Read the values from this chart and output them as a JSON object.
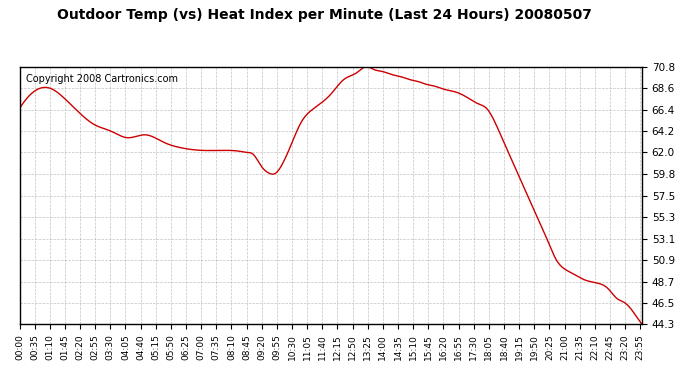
{
  "title": "Outdoor Temp (vs) Heat Index per Minute (Last 24 Hours) 20080507",
  "copyright_text": "Copyright 2008 Cartronics.com",
  "line_color": "#cc0000",
  "background_color": "#ffffff",
  "plot_bg_color": "#ffffff",
  "grid_color": "#aaaaaa",
  "y_ticks": [
    44.3,
    46.5,
    48.7,
    50.9,
    53.1,
    55.3,
    57.5,
    59.8,
    62.0,
    64.2,
    66.4,
    68.6,
    70.8
  ],
  "y_min": 44.3,
  "y_max": 70.8,
  "x_tick_labels": [
    "00:00",
    "00:35",
    "01:10",
    "01:45",
    "02:20",
    "02:55",
    "03:30",
    "04:05",
    "04:40",
    "05:15",
    "05:50",
    "06:25",
    "07:00",
    "07:35",
    "08:10",
    "08:45",
    "09:20",
    "09:55",
    "10:30",
    "11:05",
    "11:40",
    "12:15",
    "12:50",
    "13:25",
    "14:00",
    "14:35",
    "15:10",
    "15:45",
    "16:20",
    "16:55",
    "17:30",
    "18:05",
    "18:40",
    "19:15",
    "19:50",
    "20:25",
    "21:00",
    "21:35",
    "22:10",
    "22:45",
    "23:20",
    "23:55"
  ],
  "curve_keypoints_x": [
    0,
    35,
    70,
    105,
    140,
    175,
    210,
    250,
    290,
    335,
    370,
    420,
    470,
    510,
    525,
    540,
    560,
    575,
    590,
    610,
    630,
    650,
    680,
    720,
    750,
    780,
    800,
    820,
    840,
    860,
    880,
    900,
    920,
    940,
    960,
    980,
    1000,
    1020,
    1040,
    1060,
    1080,
    1100,
    1120,
    1140,
    1160,
    1180,
    1200,
    1220,
    1240,
    1260,
    1280,
    1300,
    1320,
    1340,
    1360,
    1380,
    1400,
    1420,
    1439
  ],
  "curve_keypoints_y": [
    66.5,
    68.3,
    68.6,
    67.5,
    66.0,
    64.8,
    64.2,
    63.5,
    63.8,
    63.0,
    62.5,
    62.2,
    62.2,
    62.1,
    62.0,
    61.8,
    60.5,
    59.9,
    59.8,
    61.0,
    63.0,
    65.0,
    66.5,
    68.0,
    69.5,
    70.2,
    70.8,
    70.5,
    70.3,
    70.0,
    69.8,
    69.5,
    69.3,
    69.0,
    68.8,
    68.5,
    68.3,
    68.0,
    67.5,
    67.0,
    66.5,
    65.0,
    63.0,
    61.0,
    59.0,
    57.0,
    55.0,
    53.0,
    51.0,
    50.0,
    49.5,
    49.0,
    48.7,
    48.5,
    48.0,
    47.0,
    46.5,
    45.5,
    44.3
  ]
}
